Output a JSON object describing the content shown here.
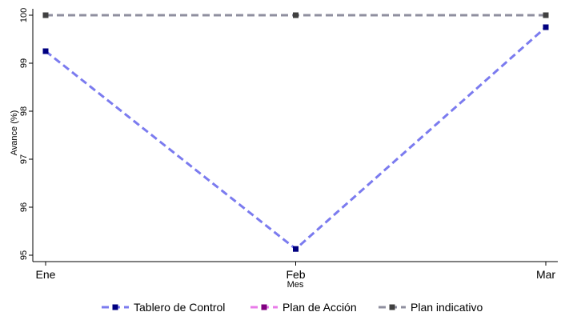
{
  "chart_data": {
    "type": "line",
    "x": [
      "Ene",
      "Feb",
      "Mar"
    ],
    "xlabel": "Mes",
    "ylabel": "Avance (%)",
    "ylim": [
      95,
      100
    ],
    "yticks": [
      95,
      96,
      97,
      98,
      99,
      100
    ],
    "grid": false,
    "legend_position": "bottom",
    "series": [
      {
        "name": "Tablero de Control",
        "values": [
          99.25,
          95.13,
          99.75
        ],
        "color": "#7b7bef",
        "marker_color": "#000080"
      },
      {
        "name": "Plan de Acción",
        "values": [
          100,
          100,
          100
        ],
        "color": "#e97be9",
        "marker_color": "#800080"
      },
      {
        "name": "Plan indicativo",
        "values": [
          100,
          100,
          100
        ],
        "color": "#8f8f9f",
        "marker_color": "#404040"
      }
    ]
  }
}
